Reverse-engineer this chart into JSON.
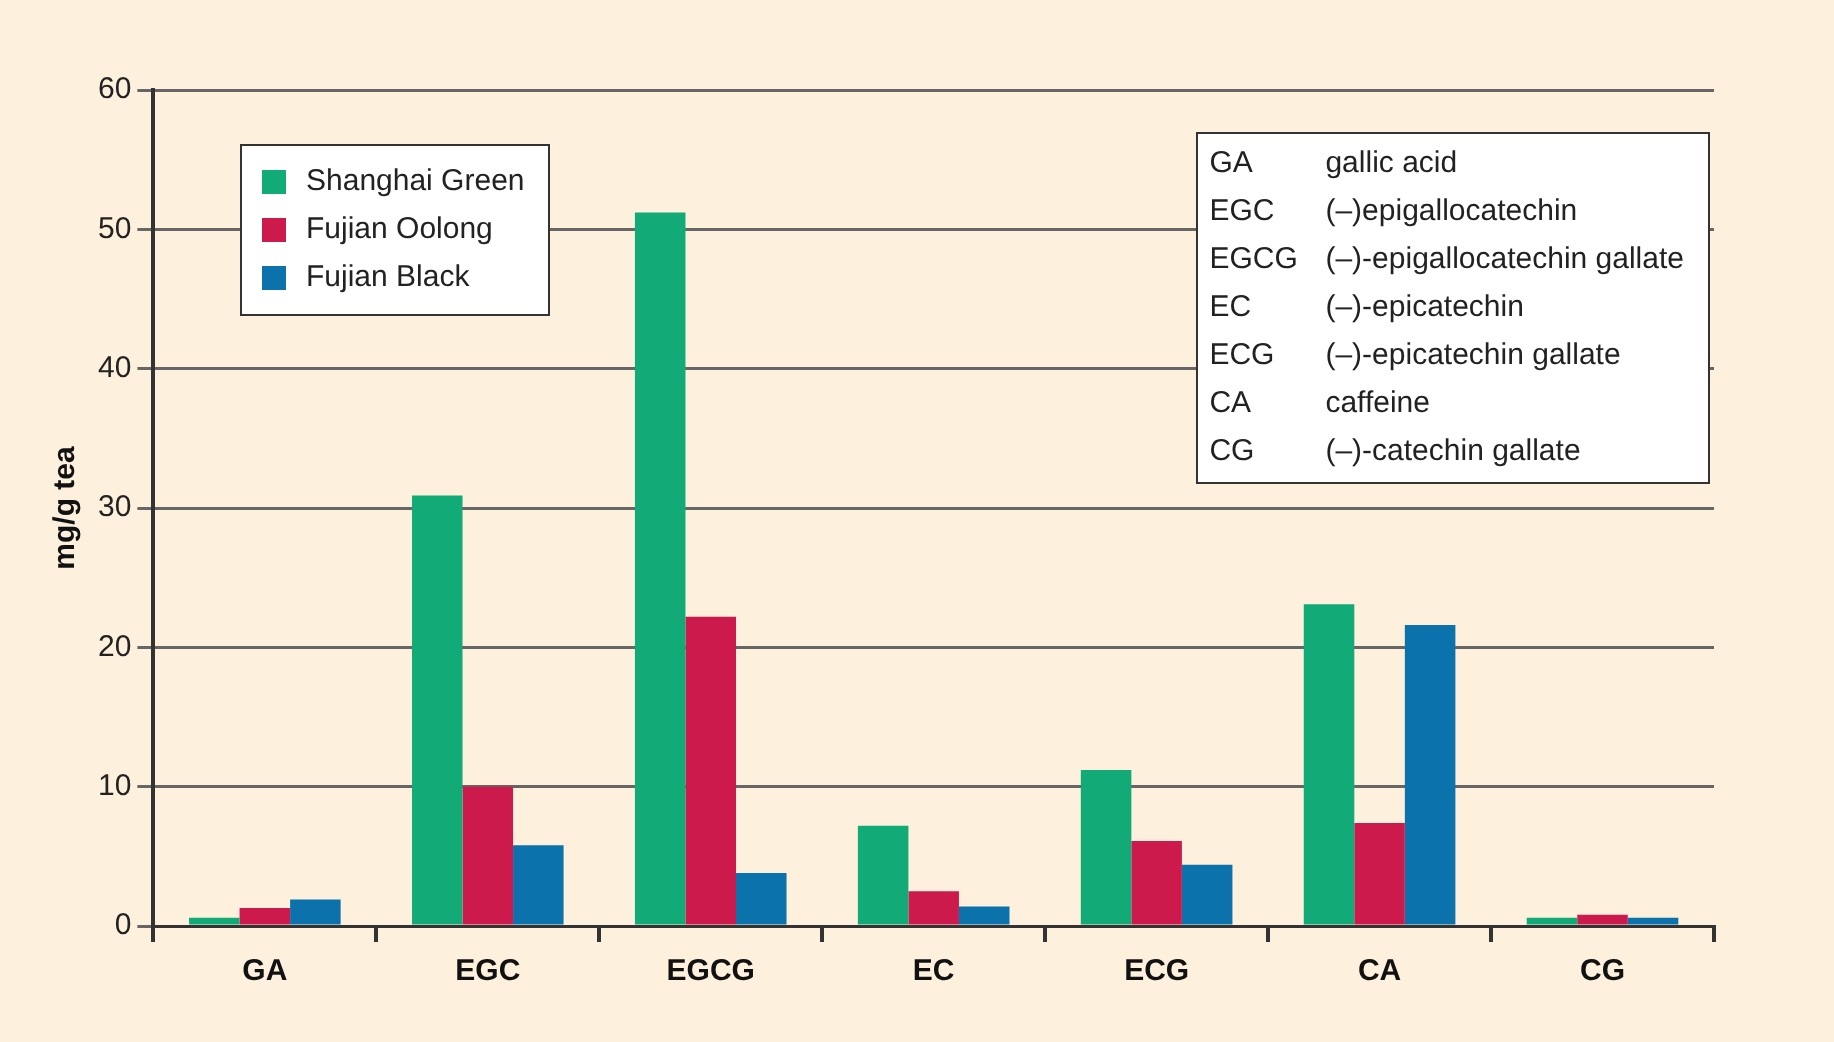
{
  "chart_data": {
    "type": "bar",
    "ylabel": "mg/g tea",
    "categories": [
      "GA",
      "EGC",
      "EGCG",
      "EC",
      "ECG",
      "CA",
      "CG"
    ],
    "series": [
      {
        "name": "Shanghai Green",
        "color": "#12aa76",
        "values": [
          0.6,
          30.9,
          51.2,
          7.2,
          11.2,
          23.1,
          0.6
        ]
      },
      {
        "name": "Fujian Oolong",
        "color": "#cd1a4c",
        "values": [
          1.3,
          10.0,
          22.2,
          2.5,
          6.1,
          7.4,
          0.8
        ]
      },
      {
        "name": "Fujian Black",
        "color": "#0b72ab",
        "values": [
          1.9,
          5.8,
          3.8,
          1.4,
          4.4,
          21.6,
          0.6
        ]
      }
    ],
    "ylim": [
      0,
      60
    ],
    "yticks": [
      0,
      10,
      20,
      30,
      40,
      50,
      60
    ],
    "grid": "y",
    "legend": "top left",
    "annotations": [
      "GA gallic acid",
      "EGC (–)epigallocatechin",
      "EGCG (–)-epigallocatechin gallate",
      "EC (–)-epicatechin",
      "ECG (–)-epicatechin gallate",
      "CA caffeine",
      "CG (–)-catechin gallate"
    ]
  }
}
